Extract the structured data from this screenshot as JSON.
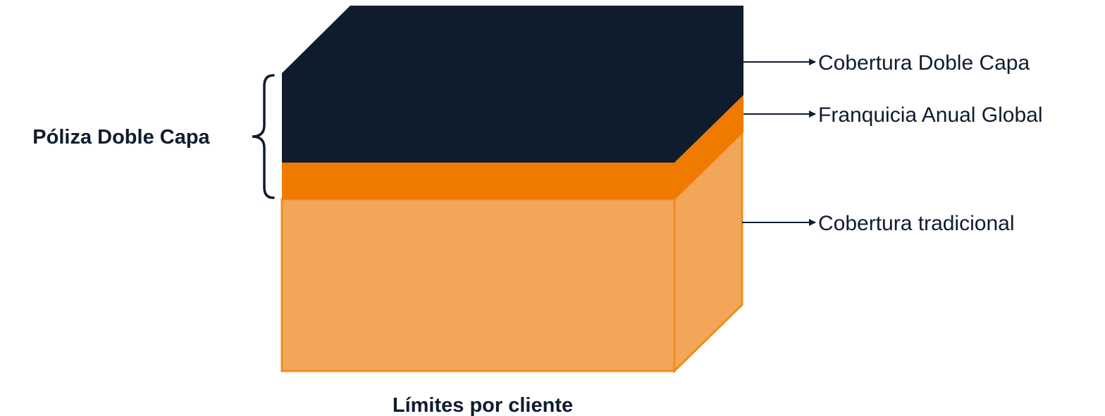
{
  "bracket_label": "Póliza Doble Capa",
  "bottom_label": "Límites por cliente",
  "callouts": [
    {
      "label": "Cobertura Doble Capa"
    },
    {
      "label": "Franquicia Anual Global"
    },
    {
      "label": "Cobertura tradicional"
    }
  ],
  "colors": {
    "dark_layer": "#0f1c2e",
    "orange_band": "#ee7a00",
    "light_block": "#f2a65a",
    "block_outline": "#f28c1e",
    "text": "#0f1c2e",
    "line": "#0f1c2e"
  }
}
